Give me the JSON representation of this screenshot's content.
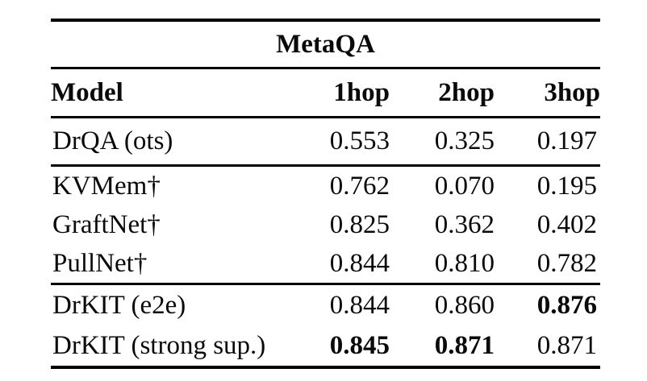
{
  "page": {
    "background": "#ffffff",
    "text_color": "#0a0a0a",
    "rule_color": "#000000"
  },
  "table": {
    "title": "MetaQA",
    "columns": [
      "Model",
      "1hop",
      "2hop",
      "3hop"
    ],
    "sections": [
      {
        "rows": [
          {
            "model": "DrQA (ots)",
            "values": [
              "0.553",
              "0.325",
              "0.197"
            ],
            "bold": [
              false,
              false,
              false
            ]
          }
        ]
      },
      {
        "rows": [
          {
            "model": "KVMem†",
            "values": [
              "0.762",
              "0.070",
              "0.195"
            ],
            "bold": [
              false,
              false,
              false
            ]
          },
          {
            "model": "GraftNet†",
            "values": [
              "0.825",
              "0.362",
              "0.402"
            ],
            "bold": [
              false,
              false,
              false
            ]
          },
          {
            "model": "PullNet†",
            "values": [
              "0.844",
              "0.810",
              "0.782"
            ],
            "bold": [
              false,
              false,
              false
            ]
          }
        ]
      },
      {
        "rows": [
          {
            "model": "DrKIT (e2e)",
            "values": [
              "0.844",
              "0.860",
              "0.876"
            ],
            "bold": [
              false,
              false,
              true
            ]
          },
          {
            "model": "DrKIT (strong sup.)",
            "values": [
              "0.845",
              "0.871",
              "0.871"
            ],
            "bold": [
              true,
              true,
              false
            ]
          }
        ]
      }
    ]
  }
}
